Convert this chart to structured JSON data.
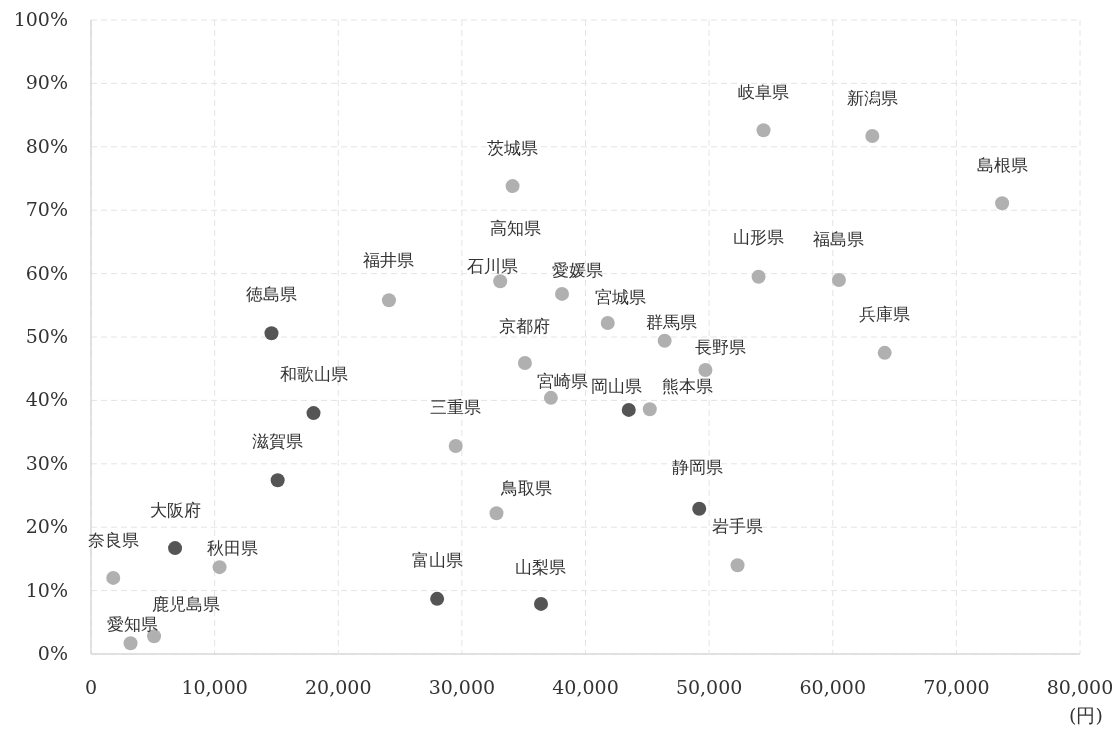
{
  "chart_data": {
    "type": "scatter",
    "marker": "circle",
    "grid": true,
    "xlabel": "(円)",
    "xlim": [
      0,
      80000
    ],
    "ylim": [
      0,
      100
    ],
    "xticks": [
      0,
      {
        "value": 10000,
        "label": "10,000"
      },
      {
        "value": 20000,
        "label": "20,000"
      },
      {
        "value": 30000,
        "label": "30,000"
      },
      {
        "value": 40000,
        "label": "40,000"
      },
      {
        "value": 50000,
        "label": "50,000"
      },
      {
        "value": 60000,
        "label": "60,000"
      },
      {
        "value": 70000,
        "label": "70,000"
      },
      {
        "value": 80000,
        "label": "80,000"
      }
    ],
    "yticks": [
      {
        "value": 0,
        "label": "0%"
      },
      {
        "value": 10,
        "label": "10%"
      },
      {
        "value": 20,
        "label": "20%"
      },
      {
        "value": 30,
        "label": "30%"
      },
      {
        "value": 40,
        "label": "40%"
      },
      {
        "value": 50,
        "label": "50%"
      },
      {
        "value": 60,
        "label": "60%"
      },
      {
        "value": 70,
        "label": "70%"
      },
      {
        "value": 80,
        "label": "80%"
      },
      {
        "value": 90,
        "label": "90%"
      },
      {
        "value": 100,
        "label": "100%"
      }
    ],
    "series": [
      {
        "color": "#b0b0b0",
        "x": [
          54400,
          63200,
          73700,
          34100,
          null,
          33100,
          38100,
          41800,
          46400,
          54000,
          60500,
          64200,
          49700,
          45200,
          52300,
          24100,
          35100,
          37200,
          29500,
          32800,
          1800,
          10400,
          5100,
          3200
        ],
        "values": [
          82.6,
          81.7,
          71.1,
          73.8,
          null,
          58.8,
          56.8,
          52.2,
          49.4,
          59.5,
          59.0,
          47.5,
          44.8,
          38.6,
          14.0,
          55.8,
          45.9,
          40.4,
          32.8,
          22.2,
          12.0,
          13.7,
          2.8,
          1.7
        ]
      },
      {
        "color": "#555555",
        "x": [
          14600,
          18000,
          43500,
          49200,
          15100,
          6800,
          28000,
          36400
        ],
        "values": [
          50.6,
          38.0,
          38.5,
          22.9,
          27.4,
          16.7,
          8.7,
          7.9
        ]
      }
    ],
    "annotations": [
      {
        "text": "岐阜県",
        "x": 54400,
        "y": 82.6
      },
      {
        "text": "新潟県",
        "x": 63200,
        "y": 81.7
      },
      {
        "text": "島根県",
        "x": 73700,
        "y": 71.1
      },
      {
        "text": "茨城県",
        "x": 34100,
        "y": 73.8
      },
      {
        "text": "高知県",
        "x": 33100,
        "y": 58.8
      },
      {
        "text": "石川県",
        "x": 33100,
        "y": 58.8
      },
      {
        "text": "愛媛県",
        "x": 38100,
        "y": 56.8
      },
      {
        "text": "宮城県",
        "x": 41800,
        "y": 52.2
      },
      {
        "text": "群馬県",
        "x": 46400,
        "y": 49.4
      },
      {
        "text": "山形県",
        "x": 54000,
        "y": 59.5
      },
      {
        "text": "福島県",
        "x": 60500,
        "y": 59.0
      },
      {
        "text": "兵庫県",
        "x": 64200,
        "y": 47.5
      },
      {
        "text": "長野県",
        "x": 49700,
        "y": 44.8
      },
      {
        "text": "熊本県",
        "x": 45200,
        "y": 38.6
      },
      {
        "text": "岩手県",
        "x": 52300,
        "y": 14.0
      },
      {
        "text": "福井県",
        "x": 24100,
        "y": 55.8
      },
      {
        "text": "京都府",
        "x": 35100,
        "y": 45.9
      },
      {
        "text": "宮崎県",
        "x": 37200,
        "y": 40.4
      },
      {
        "text": "三重県",
        "x": 29500,
        "y": 32.8
      },
      {
        "text": "鳥取県",
        "x": 32800,
        "y": 22.2
      },
      {
        "text": "奈良県",
        "x": 1800,
        "y": 12.0
      },
      {
        "text": "秋田県",
        "x": 10400,
        "y": 13.7
      },
      {
        "text": "鹿児島県",
        "x": 5100,
        "y": 2.8
      },
      {
        "text": "愛知県",
        "x": 3200,
        "y": 1.7
      },
      {
        "text": "徳島県",
        "x": 14600,
        "y": 50.6
      },
      {
        "text": "和歌山県",
        "x": 18000,
        "y": 38.0
      },
      {
        "text": "岡山県",
        "x": 43500,
        "y": 38.5
      },
      {
        "text": "静岡県",
        "x": 49200,
        "y": 22.9
      },
      {
        "text": "滋賀県",
        "x": 15100,
        "y": 27.4
      },
      {
        "text": "大阪府",
        "x": 6800,
        "y": 16.7
      },
      {
        "text": "富山県",
        "x": 28000,
        "y": 8.7
      },
      {
        "text": "山梨県",
        "x": 36400,
        "y": 7.9
      }
    ]
  }
}
